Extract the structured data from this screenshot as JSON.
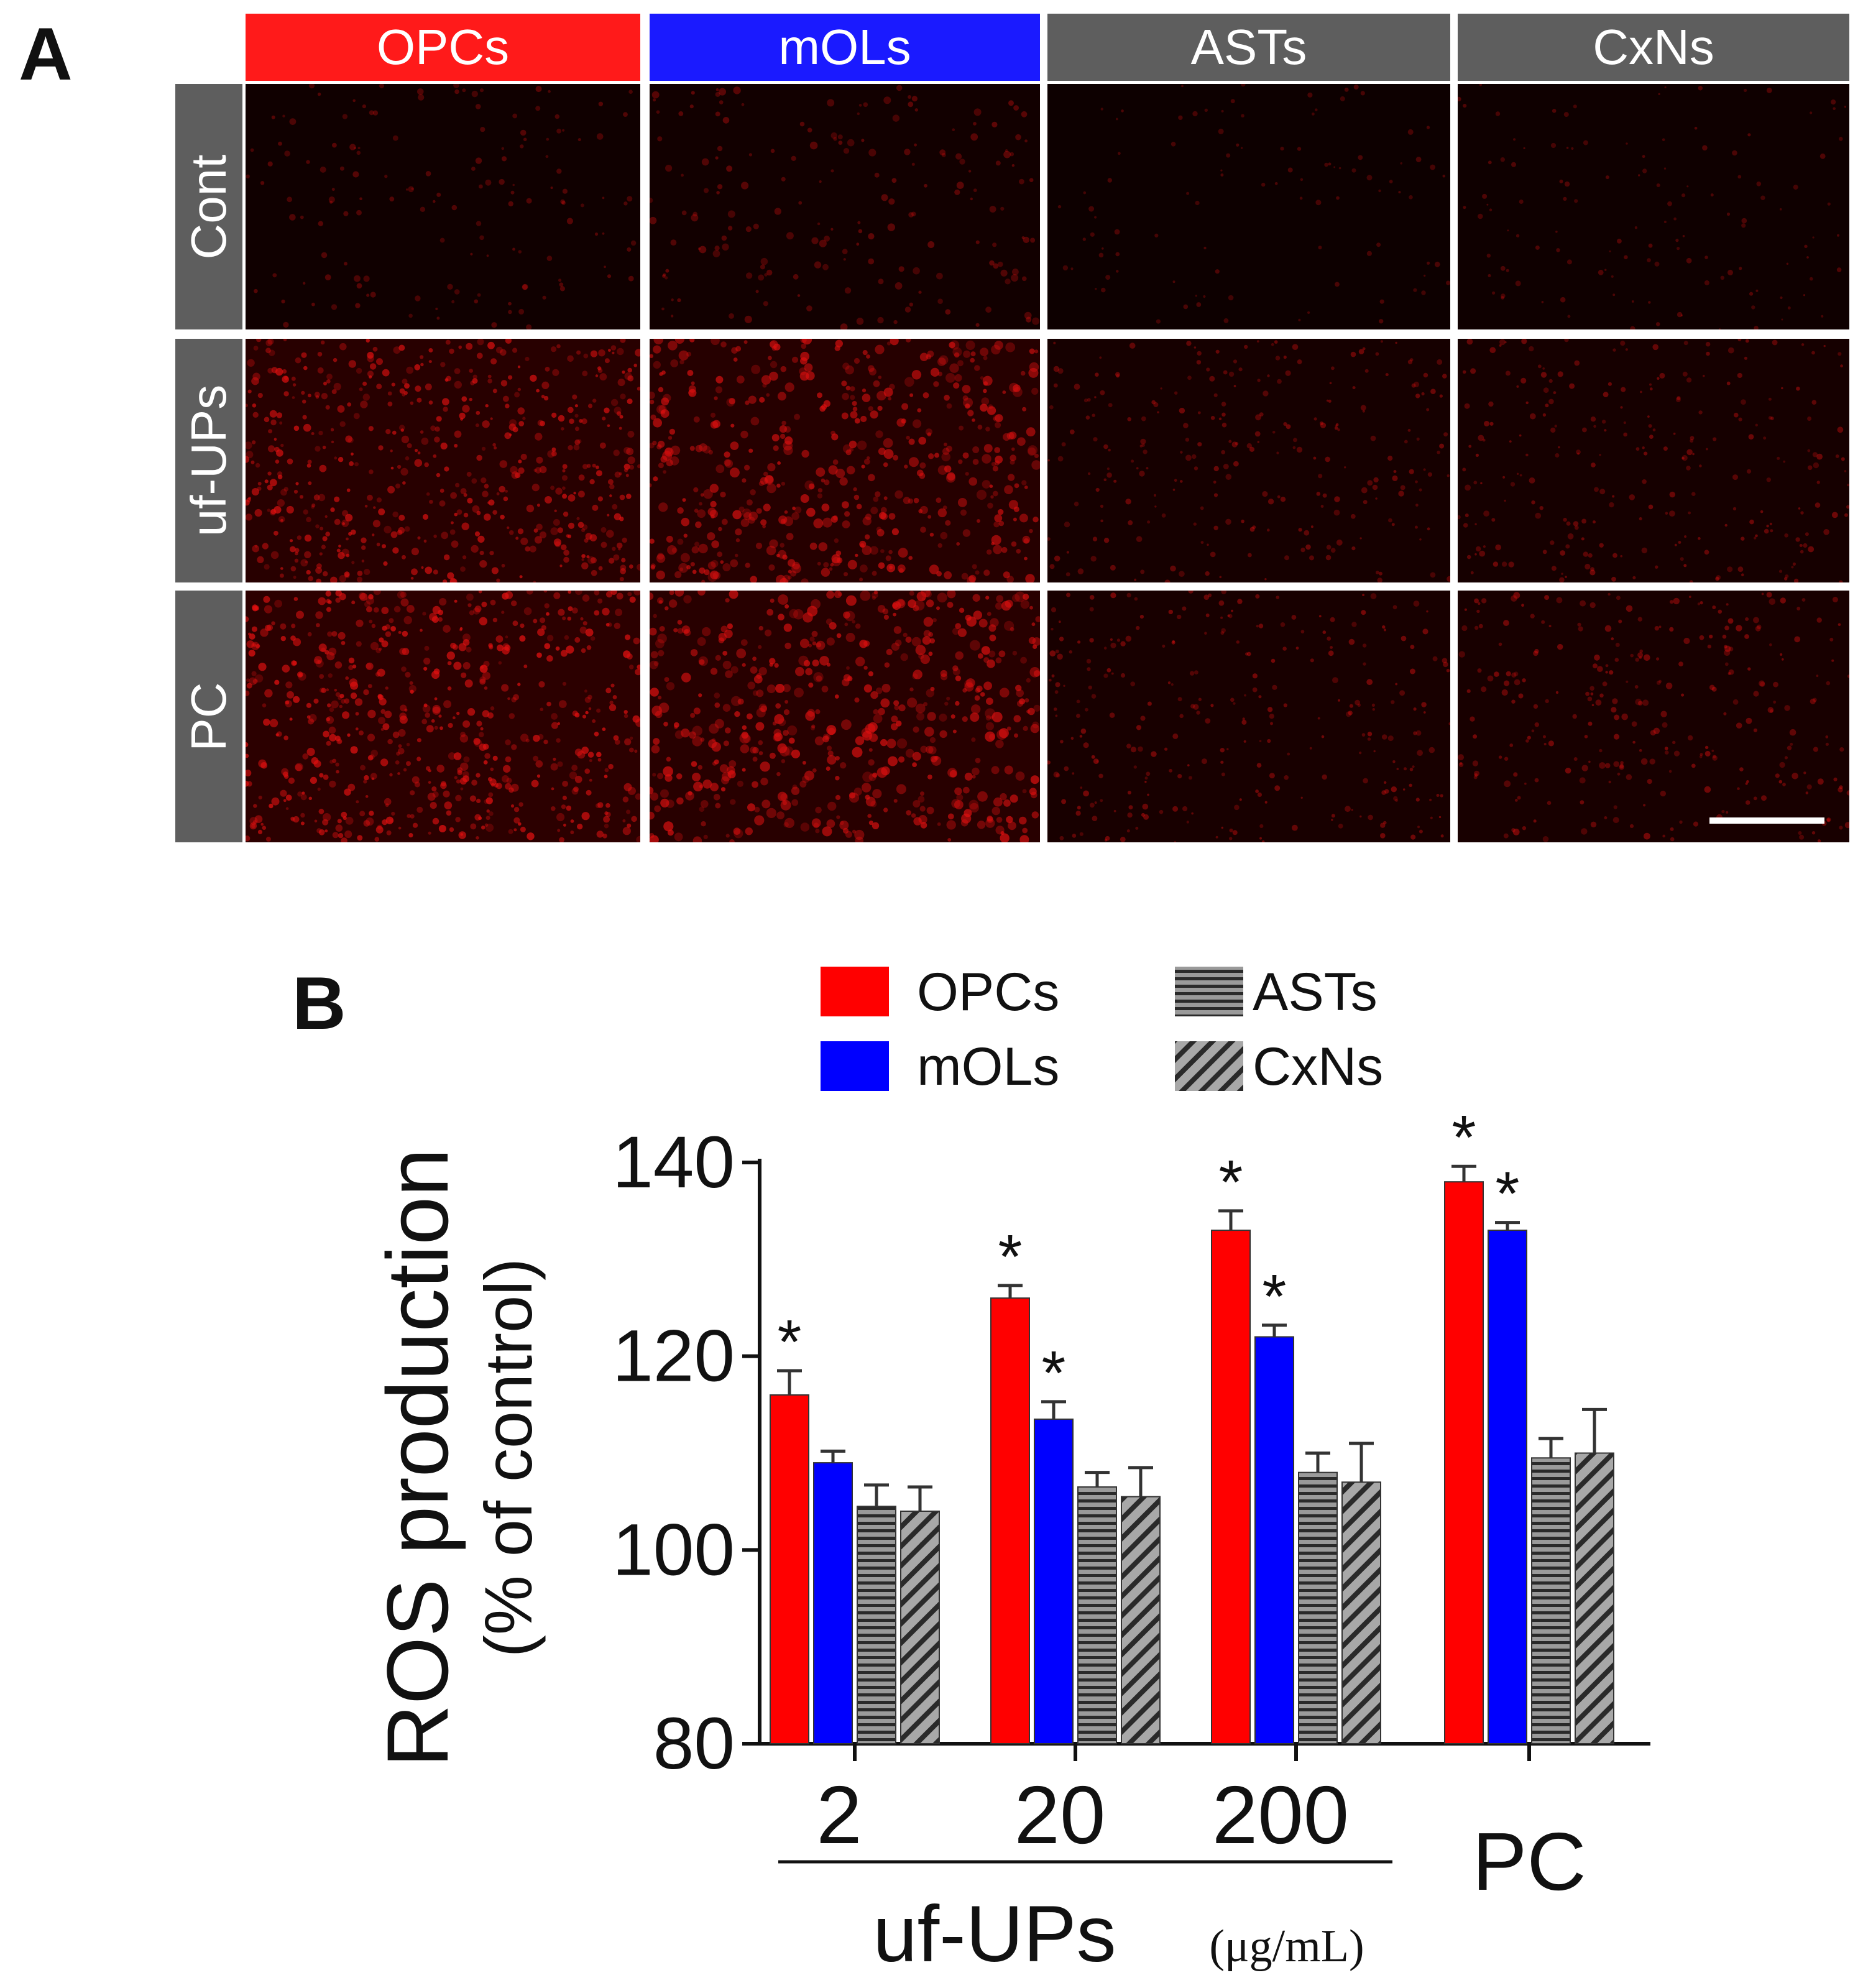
{
  "panel_a": {
    "letter": "A",
    "columns": [
      {
        "label": "OPCs",
        "color": "#ff1a1a"
      },
      {
        "label": "mOLs",
        "color": "#1a1aff"
      },
      {
        "label": "ASTs",
        "color": "#5e5e5e"
      },
      {
        "label": "CxNs",
        "color": "#5e5e5e"
      }
    ],
    "rows": [
      {
        "label": "Cont",
        "density": [
          0.15,
          0.2,
          0.08,
          0.12
        ],
        "spot_size": [
          1.2,
          1.4,
          1.0,
          1.0
        ]
      },
      {
        "label": "uf-UPs",
        "density": [
          0.75,
          0.7,
          0.3,
          0.3
        ],
        "spot_size": [
          1.4,
          1.8,
          1.1,
          1.1
        ]
      },
      {
        "label": "PC",
        "density": [
          0.85,
          0.75,
          0.35,
          0.35
        ],
        "spot_size": [
          1.5,
          1.9,
          1.1,
          1.2
        ]
      }
    ],
    "spot_color": "#e01010"
  },
  "panel_b": {
    "letter": "B"
  },
  "chart_data": {
    "type": "bar",
    "title": "",
    "ylabel": "ROS production",
    "ylabel_sub": "(% of control)",
    "ylim": [
      80,
      140
    ],
    "yticks": [
      80,
      100,
      120,
      140
    ],
    "categories": [
      "2",
      "20",
      "200",
      "PC"
    ],
    "group_label": "uf-UPs",
    "unit_label": "(μg/mL)",
    "series": [
      {
        "name": "OPCs",
        "color": "#ff0000",
        "pattern": "solid",
        "values": [
          116,
          126,
          133,
          138
        ],
        "errors": [
          2.5,
          1.3,
          2.0,
          1.6
        ],
        "significant": [
          true,
          true,
          true,
          true
        ]
      },
      {
        "name": "mOLs",
        "color": "#0000ff",
        "pattern": "solid",
        "values": [
          109,
          113.5,
          122,
          133
        ],
        "errors": [
          1.2,
          1.8,
          1.2,
          0.8
        ],
        "significant": [
          false,
          true,
          true,
          true
        ]
      },
      {
        "name": "ASTs",
        "color": "#888888",
        "pattern": "horizontal",
        "values": [
          104.5,
          106.5,
          108,
          109.5
        ],
        "errors": [
          2.2,
          1.5,
          2.0,
          2.0
        ],
        "significant": [
          false,
          false,
          false,
          false
        ]
      },
      {
        "name": "CxNs",
        "color": "#888888",
        "pattern": "diagonal",
        "values": [
          104,
          105.5,
          107,
          110
        ],
        "errors": [
          2.5,
          3.0,
          4.0,
          4.5
        ],
        "significant": [
          false,
          false,
          false,
          false
        ]
      }
    ],
    "significance_marker": "*",
    "legend_position": "top"
  }
}
